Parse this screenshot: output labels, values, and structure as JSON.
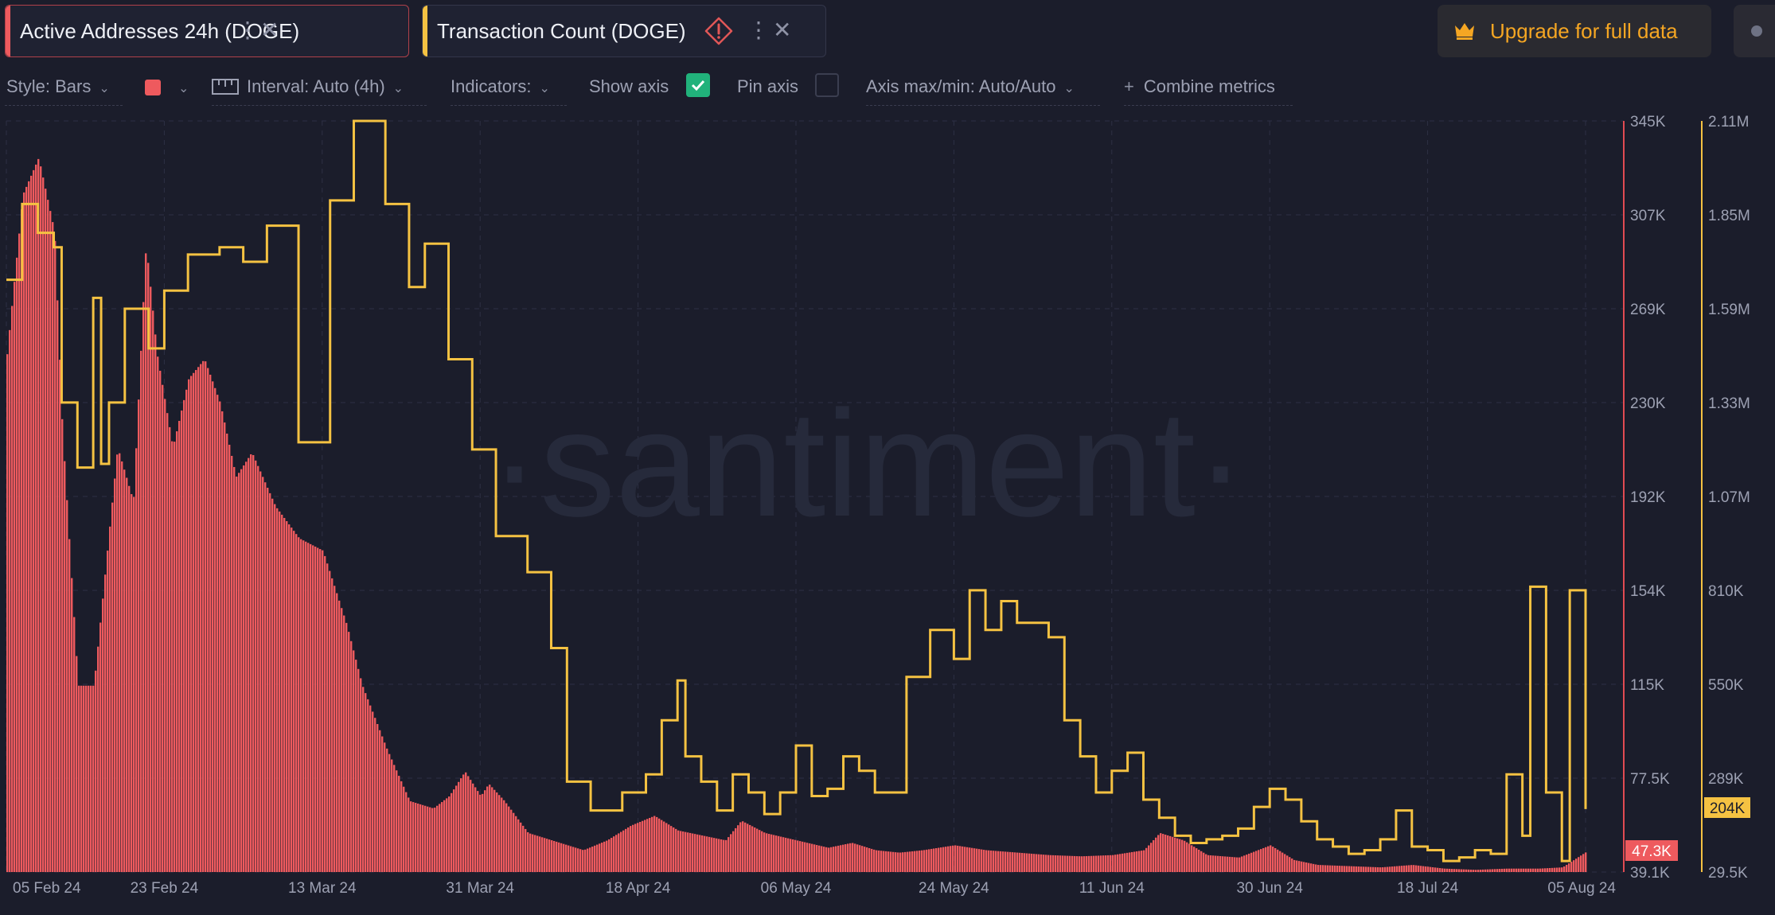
{
  "tabs": [
    {
      "label": "Active Addresses 24h (DOGE)",
      "color": "#ee5a5e"
    },
    {
      "label": "Transaction Count (DOGE)",
      "color": "#f5c242"
    }
  ],
  "upgrade": {
    "label": "Upgrade for full data"
  },
  "settings": {
    "style": "Style: Bars",
    "interval": "Interval: Auto (4h)",
    "indicators": "Indicators:",
    "show_axis": "Show axis",
    "pin_axis": "Pin axis",
    "axis_maxmin": "Axis max/min: Auto/Auto",
    "combine": "Combine metrics"
  },
  "watermark": "·santiment·",
  "chart_data": {
    "type": "bar",
    "x_labels": [
      "05 Feb 24",
      "23 Feb 24",
      "13 Mar 24",
      "31 Mar 24",
      "18 Apr 24",
      "06 May 24",
      "24 May 24",
      "11 Jun 24",
      "30 Jun 24",
      "18 Jul 24",
      "05 Aug 24"
    ],
    "left_axis": {
      "ticks": [
        "345K",
        "307K",
        "269K",
        "230K",
        "192K",
        "154K",
        "115K",
        "77.5K",
        "39.1K"
      ],
      "min": 39100,
      "max": 345000,
      "color": "#ee5a5e",
      "badge": "47.3K"
    },
    "right_axis": {
      "ticks": [
        "2.11M",
        "1.85M",
        "1.59M",
        "1.33M",
        "1.07M",
        "810K",
        "550K",
        "289K",
        "29.5K"
      ],
      "min": 29500,
      "max": 2110000,
      "color": "#f5c242",
      "badge": "204K"
    },
    "series": [
      {
        "name": "Active Addresses 24h (DOGE)",
        "axis": "left",
        "style": "bars",
        "color": "#ee5a5e",
        "points": [
          [
            0,
            250000
          ],
          [
            0.01,
            315000
          ],
          [
            0.02,
            330000
          ],
          [
            0.03,
            300000
          ],
          [
            0.035,
            220000
          ],
          [
            0.045,
            115000
          ],
          [
            0.055,
            115000
          ],
          [
            0.07,
            212000
          ],
          [
            0.08,
            190000
          ],
          [
            0.088,
            295000
          ],
          [
            0.095,
            250000
          ],
          [
            0.105,
            212000
          ],
          [
            0.115,
            240000
          ],
          [
            0.125,
            248000
          ],
          [
            0.135,
            230000
          ],
          [
            0.145,
            200000
          ],
          [
            0.155,
            210000
          ],
          [
            0.17,
            188000
          ],
          [
            0.185,
            175000
          ],
          [
            0.2,
            170000
          ],
          [
            0.215,
            140000
          ],
          [
            0.225,
            115000
          ],
          [
            0.24,
            90000
          ],
          [
            0.255,
            68000
          ],
          [
            0.27,
            65000
          ],
          [
            0.28,
            70000
          ],
          [
            0.29,
            80000
          ],
          [
            0.3,
            70000
          ],
          [
            0.305,
            75000
          ],
          [
            0.315,
            68000
          ],
          [
            0.33,
            55000
          ],
          [
            0.345,
            52000
          ],
          [
            0.365,
            48000
          ],
          [
            0.38,
            52000
          ],
          [
            0.395,
            58000
          ],
          [
            0.41,
            62000
          ],
          [
            0.425,
            56000
          ],
          [
            0.44,
            54000
          ],
          [
            0.455,
            52000
          ],
          [
            0.465,
            60000
          ],
          [
            0.48,
            55000
          ],
          [
            0.5,
            52000
          ],
          [
            0.52,
            49000
          ],
          [
            0.535,
            51000
          ],
          [
            0.55,
            48000
          ],
          [
            0.565,
            47000
          ],
          [
            0.58,
            48000
          ],
          [
            0.6,
            50000
          ],
          [
            0.62,
            48000
          ],
          [
            0.64,
            47000
          ],
          [
            0.66,
            46000
          ],
          [
            0.68,
            45500
          ],
          [
            0.7,
            46000
          ],
          [
            0.72,
            48000
          ],
          [
            0.73,
            55000
          ],
          [
            0.745,
            52000
          ],
          [
            0.76,
            46000
          ],
          [
            0.78,
            45000
          ],
          [
            0.8,
            50000
          ],
          [
            0.815,
            44000
          ],
          [
            0.83,
            42000
          ],
          [
            0.85,
            41500
          ],
          [
            0.87,
            41000
          ],
          [
            0.89,
            42000
          ],
          [
            0.91,
            40500
          ],
          [
            0.93,
            40000
          ],
          [
            0.95,
            40500
          ],
          [
            0.97,
            40500
          ],
          [
            0.985,
            41000
          ],
          [
            1,
            47300
          ]
        ]
      },
      {
        "name": "Transaction Count (DOGE)",
        "axis": "right",
        "style": "step",
        "color": "#f5c242",
        "points": [
          [
            0,
            1670000
          ],
          [
            0.01,
            1880000
          ],
          [
            0.02,
            1800000
          ],
          [
            0.03,
            1760000
          ],
          [
            0.035,
            1330000
          ],
          [
            0.045,
            1150000
          ],
          [
            0.055,
            1620000
          ],
          [
            0.06,
            1160000
          ],
          [
            0.065,
            1330000
          ],
          [
            0.075,
            1590000
          ],
          [
            0.09,
            1480000
          ],
          [
            0.1,
            1640000
          ],
          [
            0.115,
            1740000
          ],
          [
            0.135,
            1760000
          ],
          [
            0.15,
            1720000
          ],
          [
            0.165,
            1820000
          ],
          [
            0.185,
            1220000
          ],
          [
            0.205,
            1890000
          ],
          [
            0.22,
            2110000
          ],
          [
            0.24,
            1880000
          ],
          [
            0.255,
            1650000
          ],
          [
            0.265,
            1770000
          ],
          [
            0.28,
            1450000
          ],
          [
            0.295,
            1200000
          ],
          [
            0.31,
            960000
          ],
          [
            0.33,
            860000
          ],
          [
            0.345,
            650000
          ],
          [
            0.355,
            280000
          ],
          [
            0.37,
            200000
          ],
          [
            0.39,
            250000
          ],
          [
            0.405,
            300000
          ],
          [
            0.415,
            450000
          ],
          [
            0.425,
            560000
          ],
          [
            0.43,
            350000
          ],
          [
            0.44,
            280000
          ],
          [
            0.45,
            200000
          ],
          [
            0.46,
            300000
          ],
          [
            0.47,
            250000
          ],
          [
            0.48,
            190000
          ],
          [
            0.49,
            250000
          ],
          [
            0.5,
            380000
          ],
          [
            0.51,
            240000
          ],
          [
            0.52,
            260000
          ],
          [
            0.53,
            350000
          ],
          [
            0.54,
            310000
          ],
          [
            0.55,
            250000
          ],
          [
            0.57,
            570000
          ],
          [
            0.585,
            700000
          ],
          [
            0.6,
            620000
          ],
          [
            0.61,
            810000
          ],
          [
            0.62,
            700000
          ],
          [
            0.63,
            780000
          ],
          [
            0.64,
            720000
          ],
          [
            0.66,
            680000
          ],
          [
            0.67,
            450000
          ],
          [
            0.68,
            350000
          ],
          [
            0.69,
            250000
          ],
          [
            0.7,
            310000
          ],
          [
            0.71,
            360000
          ],
          [
            0.72,
            230000
          ],
          [
            0.73,
            180000
          ],
          [
            0.74,
            130000
          ],
          [
            0.75,
            110000
          ],
          [
            0.76,
            120000
          ],
          [
            0.77,
            130000
          ],
          [
            0.78,
            150000
          ],
          [
            0.79,
            210000
          ],
          [
            0.8,
            260000
          ],
          [
            0.81,
            230000
          ],
          [
            0.82,
            170000
          ],
          [
            0.83,
            120000
          ],
          [
            0.84,
            100000
          ],
          [
            0.85,
            80000
          ],
          [
            0.86,
            90000
          ],
          [
            0.87,
            120000
          ],
          [
            0.88,
            200000
          ],
          [
            0.89,
            100000
          ],
          [
            0.9,
            90000
          ],
          [
            0.91,
            60000
          ],
          [
            0.92,
            70000
          ],
          [
            0.93,
            90000
          ],
          [
            0.94,
            80000
          ],
          [
            0.95,
            300000
          ],
          [
            0.96,
            130000
          ],
          [
            0.965,
            820000
          ],
          [
            0.975,
            250000
          ],
          [
            0.985,
            60000
          ],
          [
            0.99,
            810000
          ],
          [
            1,
            204000
          ]
        ]
      }
    ]
  }
}
